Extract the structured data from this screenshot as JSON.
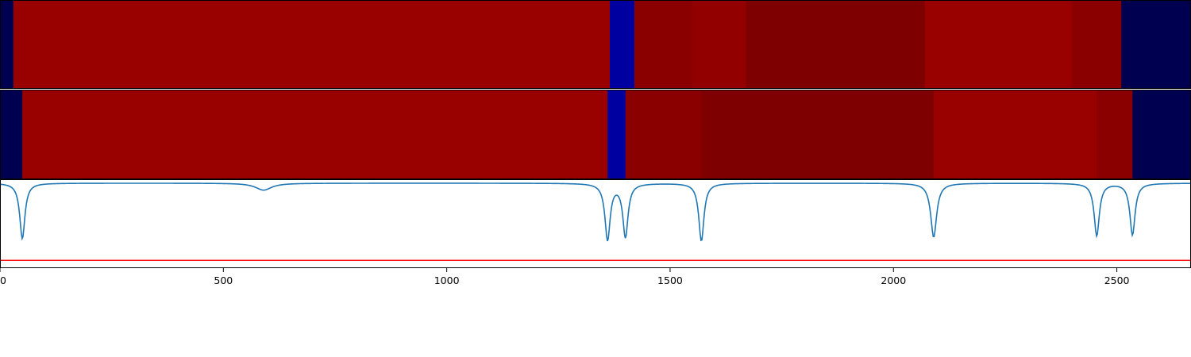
{
  "chart_data": [
    {
      "type": "heatmap",
      "panel": "top-strip",
      "xlim": [
        0,
        2666
      ],
      "segments": [
        {
          "start": 0,
          "end": 30,
          "color": "#000050"
        },
        {
          "start": 30,
          "end": 1365,
          "color": "#990000"
        },
        {
          "start": 1365,
          "end": 1420,
          "color": "#0000a0"
        },
        {
          "start": 1420,
          "end": 1550,
          "color": "#8a0000"
        },
        {
          "start": 1550,
          "end": 1670,
          "color": "#920000"
        },
        {
          "start": 1670,
          "end": 2070,
          "color": "#7e0000"
        },
        {
          "start": 2070,
          "end": 2400,
          "color": "#990000"
        },
        {
          "start": 2400,
          "end": 2510,
          "color": "#8a0000"
        },
        {
          "start": 2510,
          "end": 2666,
          "color": "#000050"
        }
      ]
    },
    {
      "type": "heatmap",
      "panel": "middle-strip",
      "xlim": [
        0,
        2666
      ],
      "segments": [
        {
          "start": 0,
          "end": 50,
          "color": "#000050"
        },
        {
          "start": 50,
          "end": 1360,
          "color": "#990000"
        },
        {
          "start": 1360,
          "end": 1400,
          "color": "#0000a0"
        },
        {
          "start": 1400,
          "end": 1570,
          "color": "#8a0000"
        },
        {
          "start": 1570,
          "end": 2090,
          "color": "#7e0000"
        },
        {
          "start": 2090,
          "end": 2455,
          "color": "#990000"
        },
        {
          "start": 2455,
          "end": 2535,
          "color": "#8a0000"
        },
        {
          "start": 2535,
          "end": 2666,
          "color": "#000050"
        }
      ]
    },
    {
      "type": "line",
      "panel": "bottom-plot",
      "xlim": [
        0,
        2666
      ],
      "ylim": [
        -1.1,
        0.05
      ],
      "x_ticks": [
        0,
        500,
        1000,
        1500,
        2000,
        2500
      ],
      "x_tick_labels": [
        "0",
        "500",
        "1000",
        "1500",
        "2000",
        "2500"
      ],
      "grid": false,
      "series": [
        {
          "color": "#1f77b4",
          "baseline": 0,
          "dips": [
            {
              "center": 50,
              "depth": 0.72,
              "width": 7
            },
            {
              "center": 590,
              "depth": 0.09,
              "width": 22
            },
            {
              "center": 1360,
              "depth": 0.73,
              "width": 7
            },
            {
              "center": 1400,
              "depth": 0.69,
              "width": 7
            },
            {
              "center": 1570,
              "depth": 0.75,
              "width": 7
            },
            {
              "center": 2090,
              "depth": 0.7,
              "width": 8
            },
            {
              "center": 2455,
              "depth": 0.68,
              "width": 7
            },
            {
              "center": 2535,
              "depth": 0.67,
              "width": 7
            }
          ]
        },
        {
          "color": "#ff0000",
          "constant": -1.0
        }
      ]
    }
  ]
}
